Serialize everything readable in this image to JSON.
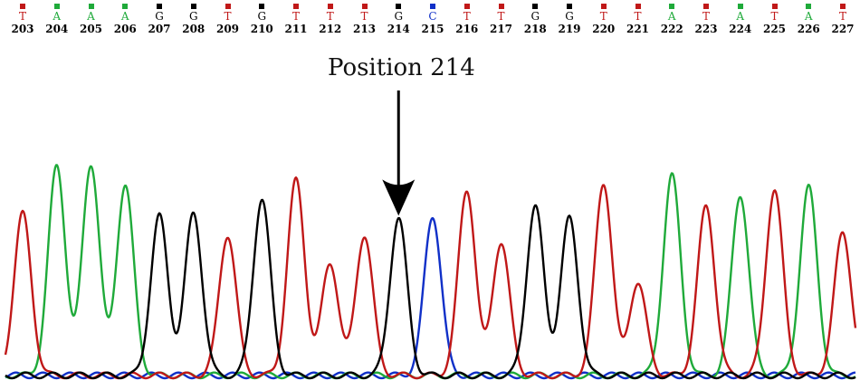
{
  "annotation": {
    "label": "Position 214",
    "target_position": 214
  },
  "colors": {
    "A": "#1faa3a",
    "C": "#1030c8",
    "G": "#000000",
    "T": "#c01818"
  },
  "bases": [
    {
      "letter": "T",
      "position": "203",
      "height": 0.68
    },
    {
      "letter": "A",
      "position": "204",
      "height": 0.88
    },
    {
      "letter": "A",
      "position": "205",
      "height": 0.89
    },
    {
      "letter": "A",
      "position": "206",
      "height": 0.8
    },
    {
      "letter": "G",
      "position": "207",
      "height": 0.67
    },
    {
      "letter": "G",
      "position": "208",
      "height": 0.68
    },
    {
      "letter": "T",
      "position": "209",
      "height": 0.59
    },
    {
      "letter": "G",
      "position": "210",
      "height": 0.74
    },
    {
      "letter": "T",
      "position": "211",
      "height": 0.82
    },
    {
      "letter": "T",
      "position": "212",
      "height": 0.47
    },
    {
      "letter": "T",
      "position": "213",
      "height": 0.59
    },
    {
      "letter": "G",
      "position": "214",
      "height": 0.66
    },
    {
      "letter": "C",
      "position": "215",
      "height": 0.67
    },
    {
      "letter": "T",
      "position": "216",
      "height": 0.78
    },
    {
      "letter": "T",
      "position": "217",
      "height": 0.56
    },
    {
      "letter": "G",
      "position": "218",
      "height": 0.71
    },
    {
      "letter": "G",
      "position": "219",
      "height": 0.66
    },
    {
      "letter": "T",
      "position": "220",
      "height": 0.81
    },
    {
      "letter": "T",
      "position": "221",
      "height": 0.39
    },
    {
      "letter": "A",
      "position": "222",
      "height": 0.84
    },
    {
      "letter": "T",
      "position": "223",
      "height": 0.71
    },
    {
      "letter": "A",
      "position": "224",
      "height": 0.76
    },
    {
      "letter": "T",
      "position": "225",
      "height": 0.78
    },
    {
      "letter": "A",
      "position": "226",
      "height": 0.79
    },
    {
      "letter": "T",
      "position": "227",
      "height": 0.6
    }
  ]
}
